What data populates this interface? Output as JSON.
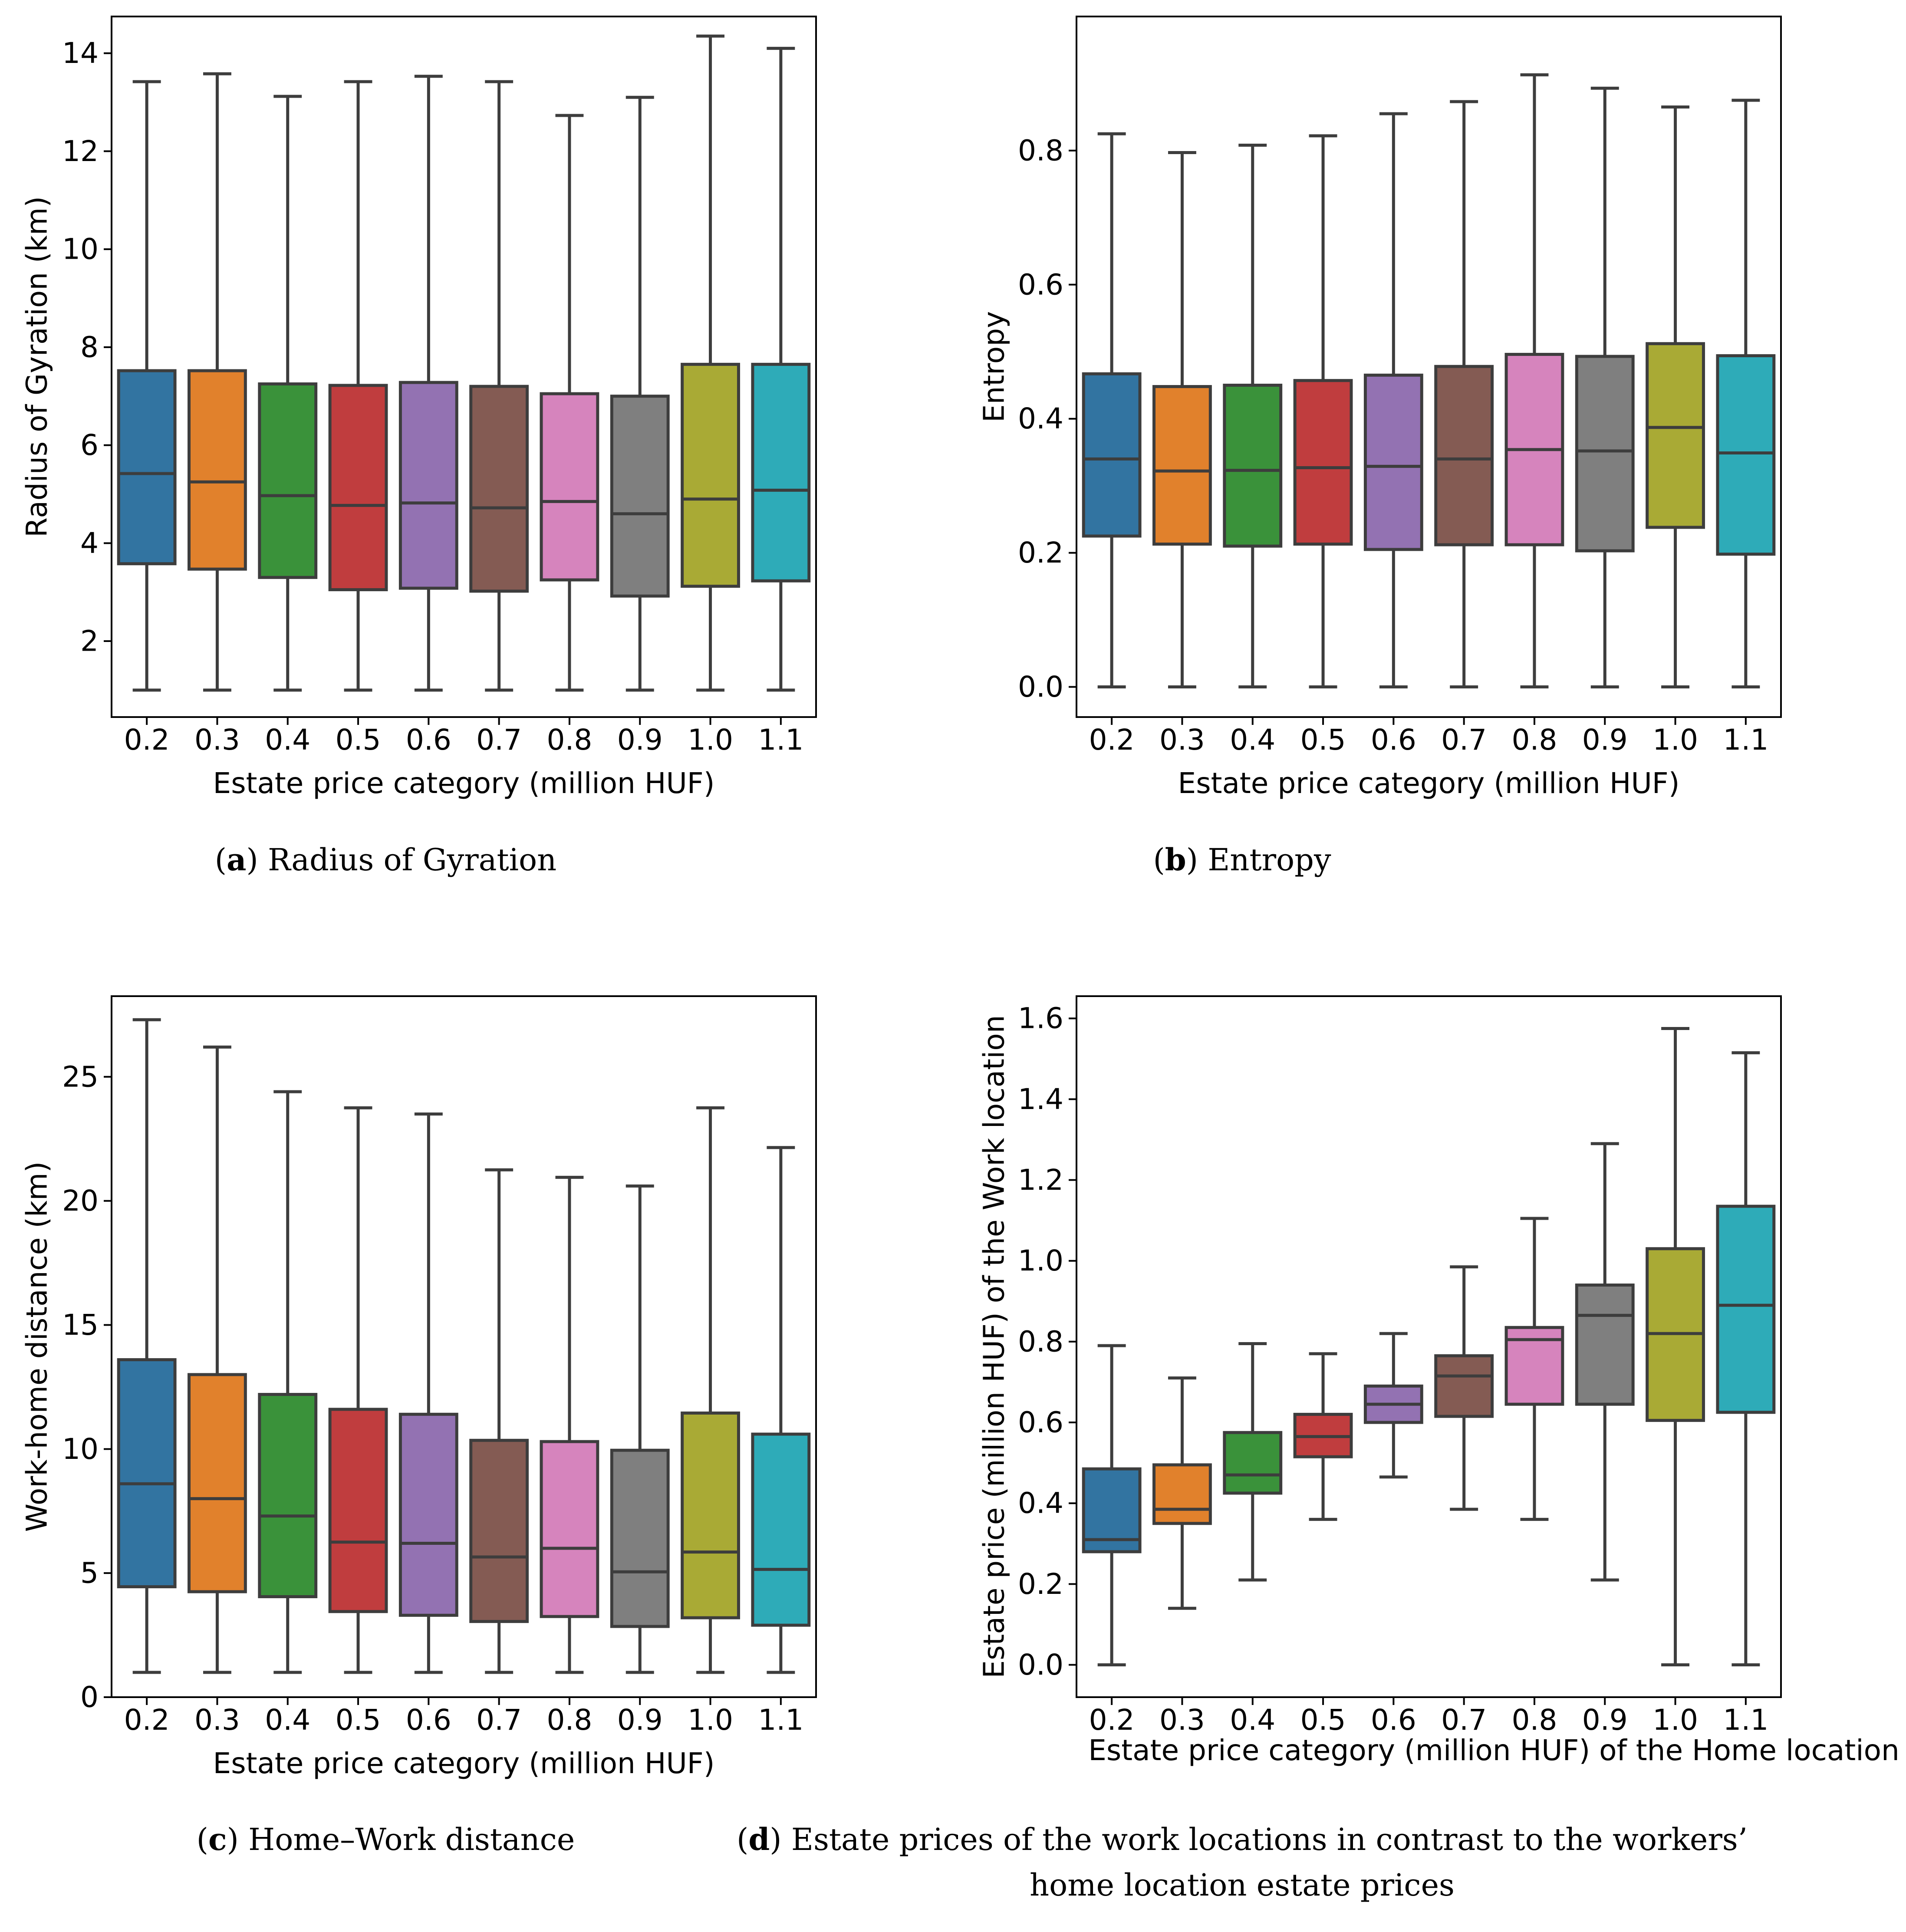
{
  "colors": [
    "#3274a1",
    "#e1812c",
    "#3a923a",
    "#c03d3e",
    "#9372b2",
    "#845b53",
    "#d684bd",
    "#7f7f7f",
    "#a9aa35",
    "#2eabb8"
  ],
  "chart_data": [
    {
      "type": "boxplot",
      "id": "a",
      "title": "",
      "xlabel": "Estate price category (million HUF)",
      "ylabel": "Radius of Gyration (km)",
      "categories": [
        "0.2",
        "0.3",
        "0.4",
        "0.5",
        "0.6",
        "0.7",
        "0.8",
        "0.9",
        "1.0",
        "1.1"
      ],
      "ylim": [
        0.45,
        14.75
      ],
      "yticks": [
        2,
        4,
        6,
        8,
        10,
        12,
        14
      ],
      "ytick_labels": [
        "2",
        "4",
        "6",
        "8",
        "10",
        "12",
        "14"
      ],
      "boxes": [
        {
          "whislo": 1.0,
          "q1": 3.58,
          "med": 5.42,
          "q3": 7.52,
          "whishi": 13.42
        },
        {
          "whislo": 1.0,
          "q1": 3.47,
          "med": 5.25,
          "q3": 7.52,
          "whishi": 13.58
        },
        {
          "whislo": 1.0,
          "q1": 3.3,
          "med": 4.97,
          "q3": 7.25,
          "whishi": 13.12
        },
        {
          "whislo": 1.0,
          "q1": 3.05,
          "med": 4.77,
          "q3": 7.22,
          "whishi": 13.42
        },
        {
          "whislo": 1.0,
          "q1": 3.08,
          "med": 4.82,
          "q3": 7.28,
          "whishi": 13.53
        },
        {
          "whislo": 1.0,
          "q1": 3.02,
          "med": 4.72,
          "q3": 7.2,
          "whishi": 13.42
        },
        {
          "whislo": 1.0,
          "q1": 3.25,
          "med": 4.85,
          "q3": 7.05,
          "whishi": 12.73
        },
        {
          "whislo": 1.0,
          "q1": 2.92,
          "med": 4.6,
          "q3": 7.0,
          "whishi": 13.1
        },
        {
          "whislo": 1.0,
          "q1": 3.12,
          "med": 4.9,
          "q3": 7.65,
          "whishi": 14.35
        },
        {
          "whislo": 1.0,
          "q1": 3.23,
          "med": 5.08,
          "q3": 7.65,
          "whishi": 14.1
        }
      ],
      "caption_letter": "a",
      "caption_lines": [
        "Radius of Gyration"
      ]
    },
    {
      "type": "boxplot",
      "id": "b",
      "title": "",
      "xlabel": "Estate price category (million HUF)",
      "ylabel": "Entropy",
      "categories": [
        "0.2",
        "0.3",
        "0.4",
        "0.5",
        "0.6",
        "0.7",
        "0.8",
        "0.9",
        "1.0",
        "1.1"
      ],
      "ylim": [
        -0.045,
        1.0
      ],
      "yticks": [
        0.0,
        0.2,
        0.4,
        0.6,
        0.8
      ],
      "ytick_labels": [
        "0.0",
        "0.2",
        "0.4",
        "0.6",
        "0.8"
      ],
      "boxes": [
        {
          "whislo": 0.0,
          "q1": 0.225,
          "med": 0.34,
          "q3": 0.467,
          "whishi": 0.825
        },
        {
          "whislo": 0.0,
          "q1": 0.213,
          "med": 0.322,
          "q3": 0.448,
          "whishi": 0.797
        },
        {
          "whislo": 0.0,
          "q1": 0.21,
          "med": 0.323,
          "q3": 0.45,
          "whishi": 0.808
        },
        {
          "whislo": 0.0,
          "q1": 0.213,
          "med": 0.327,
          "q3": 0.457,
          "whishi": 0.822
        },
        {
          "whislo": 0.0,
          "q1": 0.205,
          "med": 0.329,
          "q3": 0.465,
          "whishi": 0.855
        },
        {
          "whislo": 0.0,
          "q1": 0.212,
          "med": 0.34,
          "q3": 0.478,
          "whishi": 0.873
        },
        {
          "whislo": 0.0,
          "q1": 0.212,
          "med": 0.354,
          "q3": 0.496,
          "whishi": 0.913
        },
        {
          "whislo": 0.0,
          "q1": 0.203,
          "med": 0.352,
          "q3": 0.493,
          "whishi": 0.893
        },
        {
          "whislo": 0.0,
          "q1": 0.238,
          "med": 0.387,
          "q3": 0.512,
          "whishi": 0.865
        },
        {
          "whislo": 0.0,
          "q1": 0.198,
          "med": 0.349,
          "q3": 0.494,
          "whishi": 0.875
        }
      ],
      "caption_letter": "b",
      "caption_lines": [
        "Entropy"
      ]
    },
    {
      "type": "boxplot",
      "id": "c",
      "title": "",
      "xlabel": "Estate price category (million HUF)",
      "ylabel": "Work-home distance (km)",
      "categories": [
        "0.2",
        "0.3",
        "0.4",
        "0.5",
        "0.6",
        "0.7",
        "0.8",
        "0.9",
        "1.0",
        "1.1"
      ],
      "ylim": [
        0.0,
        28.25
      ],
      "yticks": [
        0,
        5,
        10,
        15,
        20,
        25
      ],
      "ytick_labels": [
        "0",
        "5",
        "10",
        "15",
        "20",
        "25"
      ],
      "boxes": [
        {
          "whislo": 1.0,
          "q1": 4.45,
          "med": 8.6,
          "q3": 13.6,
          "whishi": 27.3
        },
        {
          "whislo": 1.0,
          "q1": 4.25,
          "med": 8.0,
          "q3": 13.0,
          "whishi": 26.2
        },
        {
          "whislo": 1.0,
          "q1": 4.05,
          "med": 7.3,
          "q3": 12.2,
          "whishi": 24.4
        },
        {
          "whislo": 1.0,
          "q1": 3.45,
          "med": 6.25,
          "q3": 11.6,
          "whishi": 23.75
        },
        {
          "whislo": 1.0,
          "q1": 3.3,
          "med": 6.2,
          "q3": 11.4,
          "whishi": 23.5
        },
        {
          "whislo": 1.0,
          "q1": 3.05,
          "med": 5.65,
          "q3": 10.35,
          "whishi": 21.25
        },
        {
          "whislo": 1.0,
          "q1": 3.25,
          "med": 6.0,
          "q3": 10.3,
          "whishi": 20.95
        },
        {
          "whislo": 1.0,
          "q1": 2.85,
          "med": 5.05,
          "q3": 9.95,
          "whishi": 20.6
        },
        {
          "whislo": 1.0,
          "q1": 3.2,
          "med": 5.85,
          "q3": 11.45,
          "whishi": 23.75
        },
        {
          "whislo": 1.0,
          "q1": 2.9,
          "med": 5.15,
          "q3": 10.6,
          "whishi": 22.15
        }
      ],
      "caption_letter": "c",
      "caption_lines": [
        "Home–Work distance"
      ]
    },
    {
      "type": "boxplot",
      "id": "d",
      "title": "",
      "xlabel": "Estate price category (million HUF) of the Home location",
      "ylabel": "Estate price (million HUF) of the Work location",
      "categories": [
        "0.2",
        "0.3",
        "0.4",
        "0.5",
        "0.6",
        "0.7",
        "0.8",
        "0.9",
        "1.0",
        "1.1"
      ],
      "ylim": [
        -0.08,
        1.655
      ],
      "yticks": [
        0.0,
        0.2,
        0.4,
        0.6,
        0.8,
        1.0,
        1.2,
        1.4,
        1.6
      ],
      "ytick_labels": [
        "0.0",
        "0.2",
        "0.4",
        "0.6",
        "0.8",
        "1.0",
        "1.2",
        "1.4",
        "1.6"
      ],
      "boxes": [
        {
          "whislo": 0.0,
          "q1": 0.28,
          "med": 0.31,
          "q3": 0.485,
          "whishi": 0.79
        },
        {
          "whislo": 0.14,
          "q1": 0.35,
          "med": 0.385,
          "q3": 0.495,
          "whishi": 0.71
        },
        {
          "whislo": 0.21,
          "q1": 0.425,
          "med": 0.47,
          "q3": 0.575,
          "whishi": 0.795
        },
        {
          "whislo": 0.36,
          "q1": 0.515,
          "med": 0.565,
          "q3": 0.62,
          "whishi": 0.77
        },
        {
          "whislo": 0.465,
          "q1": 0.6,
          "med": 0.645,
          "q3": 0.69,
          "whishi": 0.82
        },
        {
          "whislo": 0.385,
          "q1": 0.615,
          "med": 0.715,
          "q3": 0.765,
          "whishi": 0.985
        },
        {
          "whislo": 0.36,
          "q1": 0.645,
          "med": 0.805,
          "q3": 0.835,
          "whishi": 1.105
        },
        {
          "whislo": 0.21,
          "q1": 0.645,
          "med": 0.865,
          "q3": 0.94,
          "whishi": 1.29
        },
        {
          "whislo": 0.0,
          "q1": 0.605,
          "med": 0.82,
          "q3": 1.03,
          "whishi": 1.575
        },
        {
          "whislo": 0.0,
          "q1": 0.625,
          "med": 0.89,
          "q3": 1.135,
          "whishi": 1.515
        }
      ],
      "caption_letter": "d",
      "caption_lines": [
        "Estate prices of the work locations in contrast to the workers’",
        "home location estate prices"
      ]
    }
  ]
}
